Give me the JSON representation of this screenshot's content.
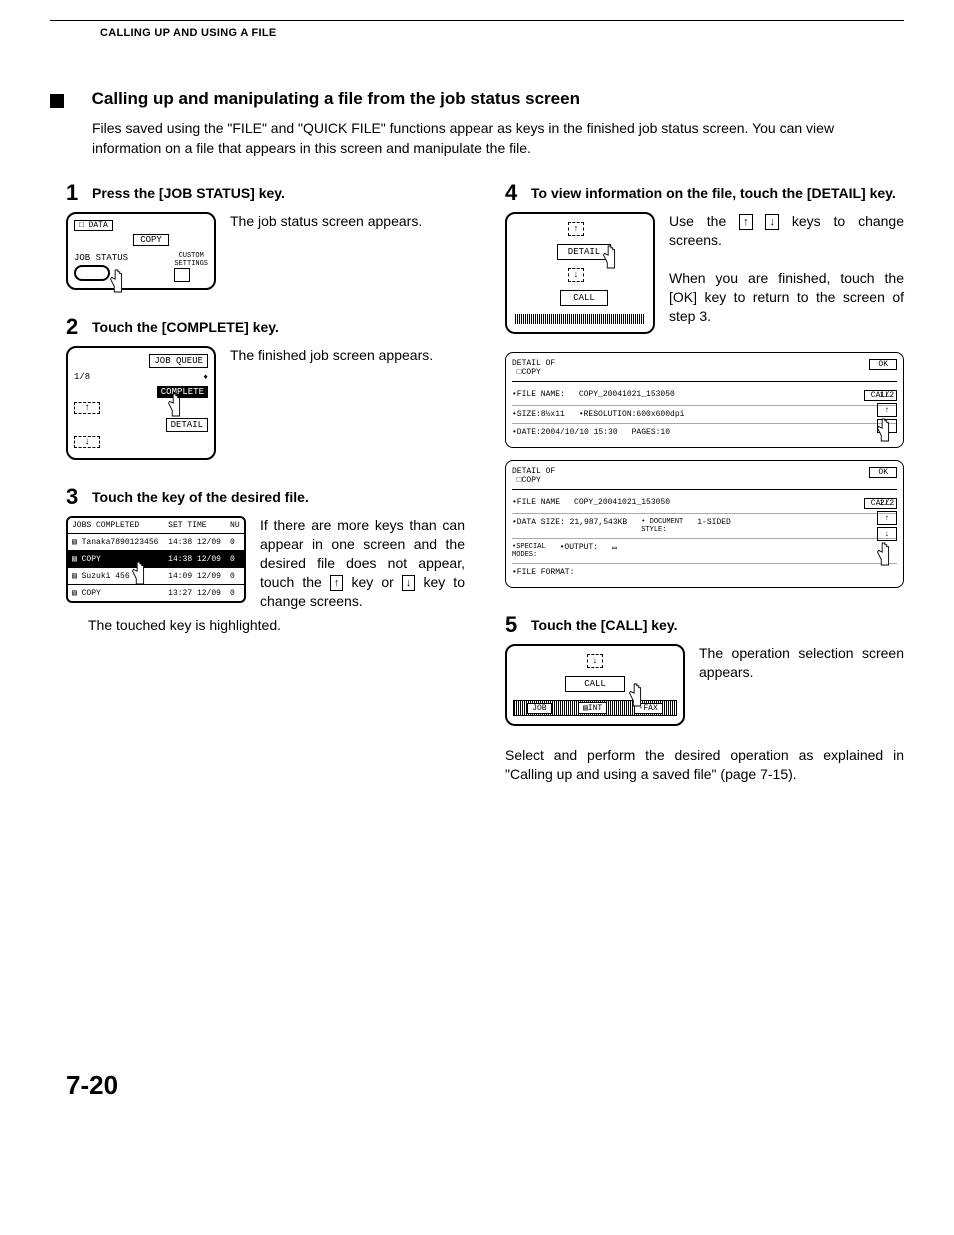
{
  "chapter_header": "CALLING UP AND USING A FILE",
  "section_title": "Calling up and manipulating a file from the job status screen",
  "section_intro": "Files saved using the \"FILE\" and \"QUICK FILE\" functions appear as keys in the finished job status screen. You can view information on a file that appears in this screen and manipulate the file.",
  "steps": {
    "s1": {
      "num": "1",
      "title": "Press the [JOB STATUS] key.",
      "text": "The job status screen appears."
    },
    "s2": {
      "num": "2",
      "title": "Touch the [COMPLETE] key.",
      "text": "The finished job screen appears."
    },
    "s3": {
      "num": "3",
      "title": "Touch the key of the desired file.",
      "text": "If there are more keys than can appear in one screen and the desired file does not appear, touch the ",
      "text2": " key or ",
      "text3": " key to change screens.",
      "caption": "The touched key is highlighted."
    },
    "s4": {
      "num": "4",
      "title": "To view information on the file, touch the [DETAIL] key.",
      "text1a": "Use the ",
      "text1b": " keys to change screens.",
      "text2": "When you are finished, touch the [OK] key to return to the screen of step 3."
    },
    "s5": {
      "num": "5",
      "title": "Touch the [CALL] key.",
      "text": "The operation selection screen appears.",
      "footer": "Select and perform the desired operation as explained in \"Calling up and using a saved file\" (page 7-15)."
    }
  },
  "illus1": {
    "data": "DATA",
    "copy": "COPY",
    "job_status": "JOB STATUS",
    "custom": "CUSTOM\nSETTINGS"
  },
  "illus2": {
    "job_queue": "JOB QUEUE",
    "complete": "COMPLETE",
    "detail": "DETAIL",
    "counter": "1/8"
  },
  "illus3": {
    "cols": [
      "JOBS COMPLETED",
      "SET TIME",
      "NU"
    ],
    "rows": [
      [
        "Tanaka7890123456",
        "14:38 12/09",
        "0"
      ],
      [
        "COPY",
        "14:38 12/09",
        "0"
      ],
      [
        "Suzuki        456",
        "14:09 12/09",
        "0"
      ],
      [
        "COPY",
        "13:27 12/09",
        "0"
      ]
    ],
    "selected_index": 1
  },
  "illus4": {
    "detail": "DETAIL",
    "call": "CALL"
  },
  "illus5": {
    "call": "CALL",
    "job": "JOB",
    "print": "INT",
    "fax": "-FAX"
  },
  "detail1": {
    "header": "DETAIL OF",
    "mode": "COPY",
    "ok": "OK",
    "file_name_label": "•FILE NAME:",
    "file_name": "COPY_20041021_153050",
    "call": "CALL",
    "size_label": "•SIZE:8½x11",
    "reso_label": "•RESOLUTION:600x600dpi",
    "page": "1/2",
    "date_label": "•DATE:2004/10/10 15:30",
    "pages": "PAGES:10"
  },
  "detail2": {
    "header": "DETAIL OF",
    "mode": "COPY",
    "ok": "OK",
    "file_name_label": "•FILE NAME",
    "file_name": "COPY_20041021_153050",
    "call": "CALL",
    "size_label": "•DATA SIZE: 21,987,543KB",
    "doc": "DOCUMENT\nSTYLE:",
    "sided": "1-SIDED",
    "page": "2/2",
    "modes": "SPECIAL\nMODES:",
    "output": "•OUTPUT:",
    "format": "•FILE FORMAT:"
  },
  "page_number": "7-20"
}
